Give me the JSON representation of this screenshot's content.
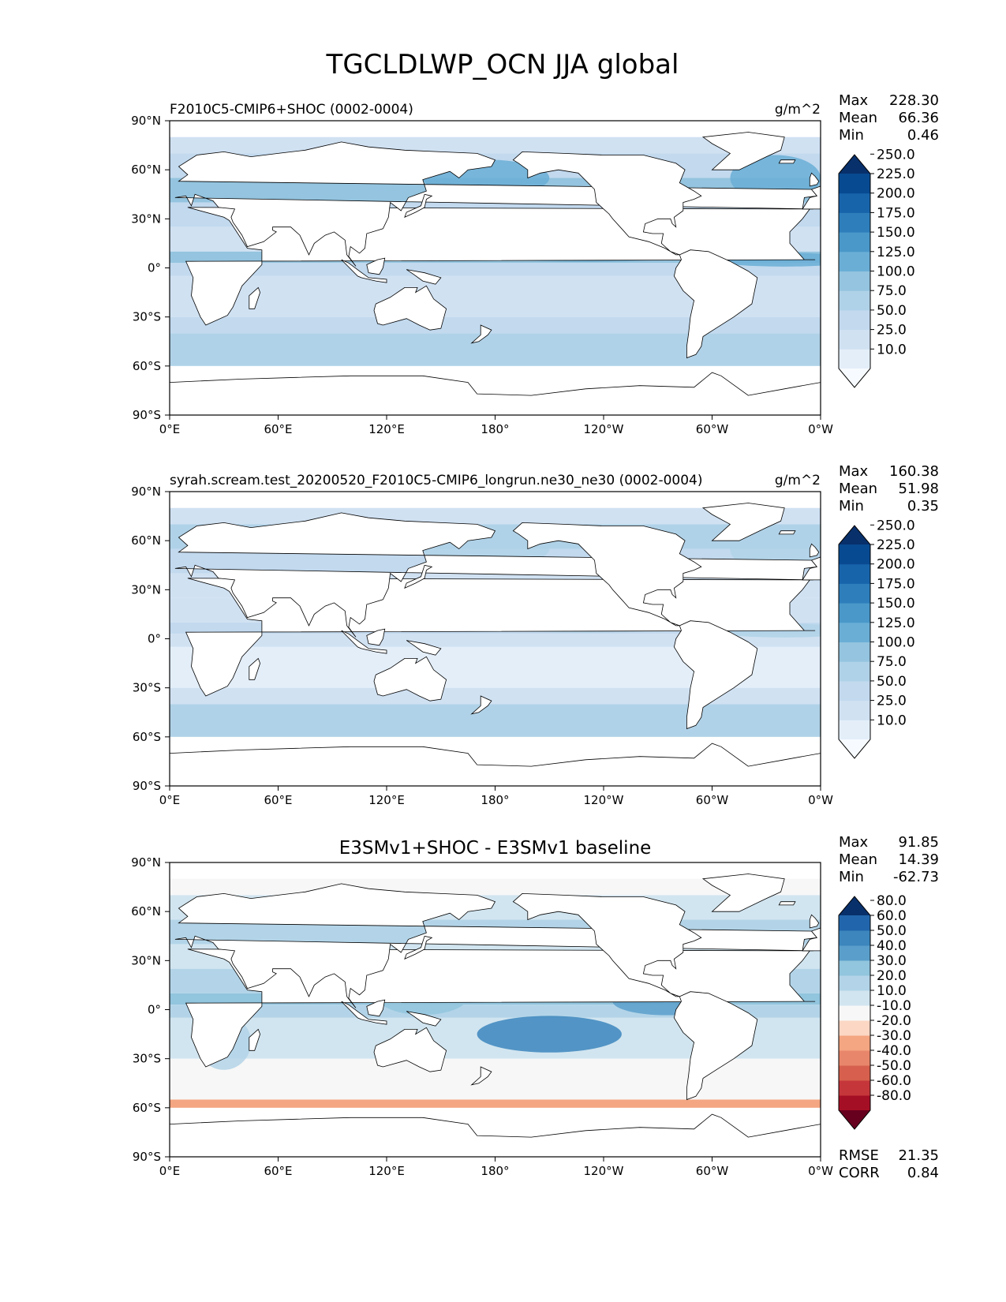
{
  "figure_title": "TGCLDLWP_OCN JJA global",
  "chart_data": [
    {
      "type": "heatmap",
      "title": "F2010C5-CMIP6+SHOC (0002-0004)",
      "units": "g/m^2",
      "stats": {
        "max_label": "Max",
        "max": "228.30",
        "mean_label": "Mean",
        "mean": "66.36",
        "min_label": "Min",
        "min": "0.46"
      },
      "colorbar": {
        "levels": [
          "10.0",
          "25.0",
          "50.0",
          "75.0",
          "100.0",
          "125.0",
          "150.0",
          "175.0",
          "200.0",
          "225.0",
          "250.0"
        ],
        "colors": [
          "#f7fbff",
          "#e3eef9",
          "#d0e1f2",
          "#c2d9ee",
          "#b0d2e8",
          "#94c4df",
          "#6aaed6",
          "#4a98c9",
          "#2e7ebc",
          "#1764ab",
          "#084a91",
          "#08306b"
        ]
      },
      "xticks": [
        "0°E",
        "60°E",
        "120°E",
        "180°",
        "120°W",
        "60°W",
        "0°W"
      ],
      "yticks": [
        "90°N",
        "60°N",
        "30°N",
        "0°",
        "30°S",
        "60°S",
        "90°S"
      ],
      "xlim": [
        0,
        360
      ],
      "ylim": [
        -90,
        90
      ]
    },
    {
      "type": "heatmap",
      "title": "syrah.scream.test_20200520_F2010C5-CMIP6_longrun.ne30_ne30 (0002-0004)",
      "units": "g/m^2",
      "stats": {
        "max_label": "Max",
        "max": "160.38",
        "mean_label": "Mean",
        "mean": "51.98",
        "min_label": "Min",
        "min": "0.35"
      },
      "colorbar": {
        "levels": [
          "10.0",
          "25.0",
          "50.0",
          "75.0",
          "100.0",
          "125.0",
          "150.0",
          "175.0",
          "200.0",
          "225.0",
          "250.0"
        ],
        "colors": [
          "#f7fbff",
          "#e3eef9",
          "#d0e1f2",
          "#c2d9ee",
          "#b0d2e8",
          "#94c4df",
          "#6aaed6",
          "#4a98c9",
          "#2e7ebc",
          "#1764ab",
          "#084a91",
          "#08306b"
        ]
      },
      "xticks": [
        "0°E",
        "60°E",
        "120°E",
        "180°",
        "120°W",
        "60°W",
        "0°W"
      ],
      "yticks": [
        "90°N",
        "60°N",
        "30°N",
        "0°",
        "30°S",
        "60°S",
        "90°S"
      ],
      "xlim": [
        0,
        360
      ],
      "ylim": [
        -90,
        90
      ]
    },
    {
      "type": "heatmap",
      "title": "E3SMv1+SHOC - E3SMv1 baseline",
      "units": "",
      "stats": {
        "max_label": "Max",
        "max": "91.85",
        "mean_label": "Mean",
        "mean": "14.39",
        "min_label": "Min",
        "min": "-62.73"
      },
      "colorbar": {
        "levels": [
          "-80.0",
          "-60.0",
          "-50.0",
          "-40.0",
          "-30.0",
          "-20.0",
          "-10.0",
          "10.0",
          "20.0",
          "30.0",
          "40.0",
          "50.0",
          "60.0",
          "80.0"
        ],
        "colors": [
          "#67001f",
          "#a50f26",
          "#c5363b",
          "#d6604d",
          "#e8866b",
          "#f4a582",
          "#fbd7c4",
          "#f7f7f7",
          "#d1e5f0",
          "#b3d4e8",
          "#92c5de",
          "#5a9fcb",
          "#3c86bd",
          "#2166ac",
          "#08306b"
        ]
      },
      "extra_stats": {
        "rmse_label": "RMSE",
        "rmse": "21.35",
        "corr_label": "CORR",
        "corr": "0.84"
      },
      "xticks": [
        "0°E",
        "60°E",
        "120°E",
        "180°",
        "120°W",
        "60°W",
        "0°W"
      ],
      "yticks": [
        "90°N",
        "60°N",
        "30°N",
        "0°",
        "30°S",
        "60°S",
        "90°S"
      ],
      "xlim": [
        0,
        360
      ],
      "ylim": [
        -90,
        90
      ]
    }
  ]
}
